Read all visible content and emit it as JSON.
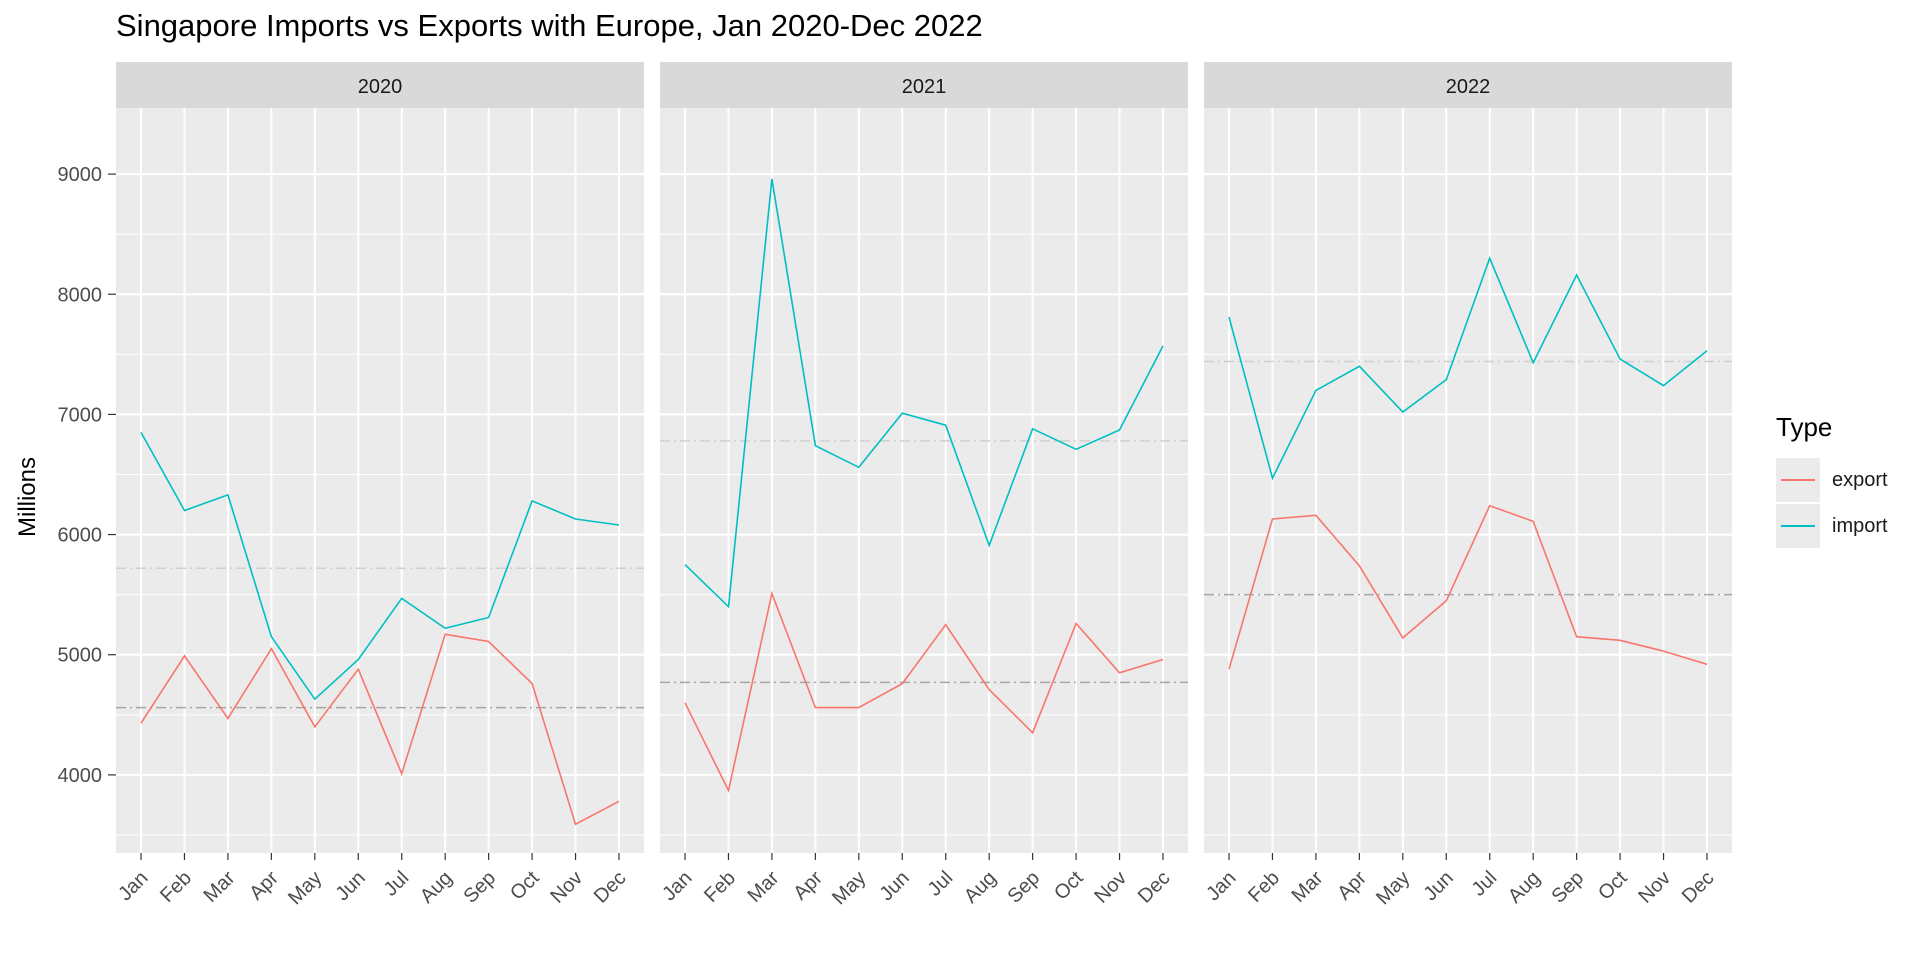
{
  "chart_data": {
    "type": "line",
    "title": "Singapore Imports vs Exports with Europe, Jan 2020-Dec 2022",
    "xlabel": "",
    "ylabel": "Millions",
    "ylim": [
      3350,
      9550
    ],
    "y_ticks": [
      4000,
      5000,
      6000,
      7000,
      8000,
      9000
    ],
    "grid": true,
    "legend": {
      "title": "Type",
      "placement": "right"
    },
    "colors": {
      "export": "#F8766D",
      "import": "#00BFC4"
    },
    "categories": [
      "Jan",
      "Feb",
      "Mar",
      "Apr",
      "May",
      "Jun",
      "Jul",
      "Aug",
      "Sep",
      "Oct",
      "Nov",
      "Dec"
    ],
    "facets": [
      {
        "label": "2020",
        "series": [
          {
            "name": "export",
            "values": [
              4430,
              4990,
              4470,
              5050,
              4400,
              4880,
              4010,
              5170,
              5110,
              4760,
              3590,
              3780
            ],
            "mean": 4560
          },
          {
            "name": "import",
            "values": [
              6850,
              6200,
              6330,
              5150,
              4630,
              4960,
              5470,
              5220,
              5310,
              6280,
              6130,
              6080
            ],
            "mean": 5720
          }
        ]
      },
      {
        "label": "2021",
        "series": [
          {
            "name": "export",
            "values": [
              4600,
              3870,
              5510,
              4560,
              4560,
              4760,
              5250,
              4710,
              4350,
              5260,
              4850,
              4960
            ],
            "mean": 4770
          },
          {
            "name": "import",
            "values": [
              5750,
              5400,
              8960,
              6740,
              6560,
              7010,
              6910,
              5910,
              6880,
              6710,
              6870,
              7570
            ],
            "mean": 6780
          }
        ]
      },
      {
        "label": "2022",
        "series": [
          {
            "name": "export",
            "values": [
              4880,
              6130,
              6160,
              5740,
              5140,
              5450,
              6240,
              6110,
              5150,
              5120,
              5030,
              4920
            ],
            "mean": 5500
          },
          {
            "name": "import",
            "values": [
              7810,
              6470,
              7200,
              7400,
              7020,
              7290,
              8300,
              7430,
              8160,
              7460,
              7240,
              7530
            ],
            "mean": 7440
          }
        ]
      }
    ]
  }
}
